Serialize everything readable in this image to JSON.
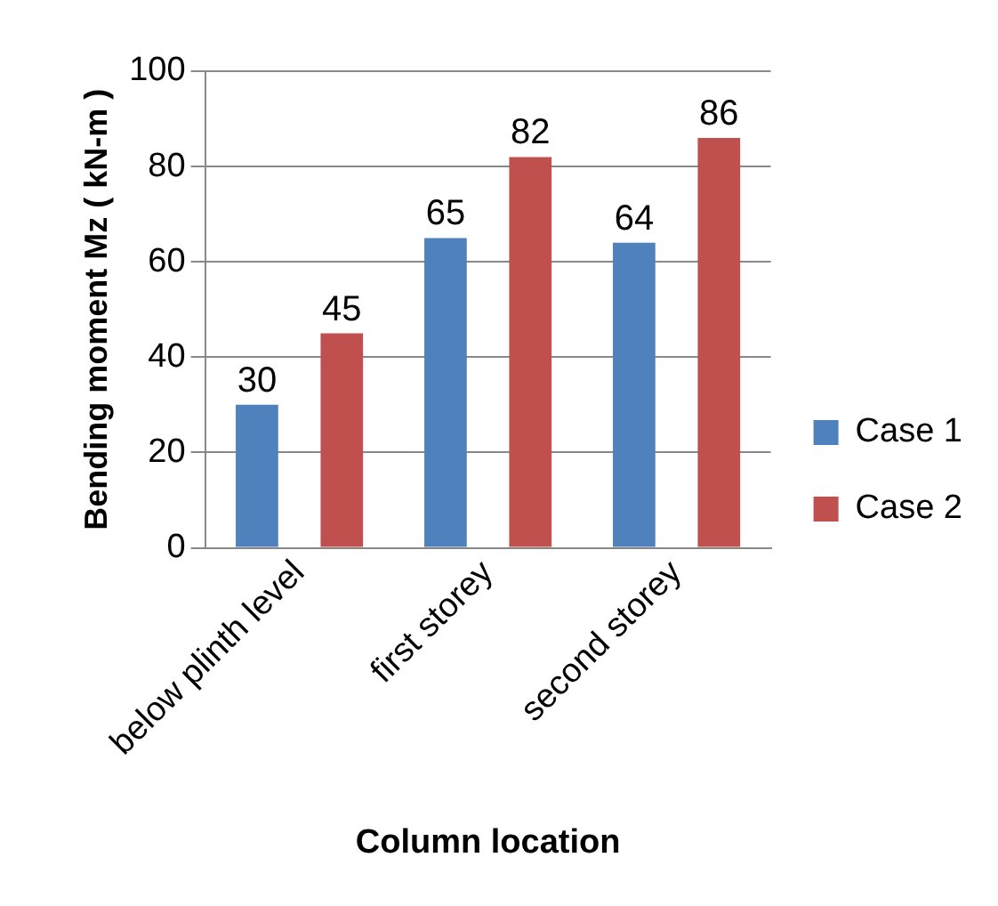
{
  "chart_data": {
    "type": "bar",
    "xlabel": "Column location",
    "ylabel": "Bending moment Mz ( kN-m )",
    "categories": [
      "below plinth level",
      "first storey",
      "second storey"
    ],
    "series": [
      {
        "name": "Case 1",
        "color": "#4f81bd",
        "values": [
          30,
          65,
          64
        ]
      },
      {
        "name": "Case 2",
        "color": "#c0504d",
        "values": [
          45,
          82,
          86
        ]
      }
    ],
    "ylim": [
      0,
      100
    ],
    "yticks": [
      0,
      20,
      40,
      60,
      80,
      100
    ],
    "grid": "y",
    "legend": "right",
    "data_labels": true
  }
}
